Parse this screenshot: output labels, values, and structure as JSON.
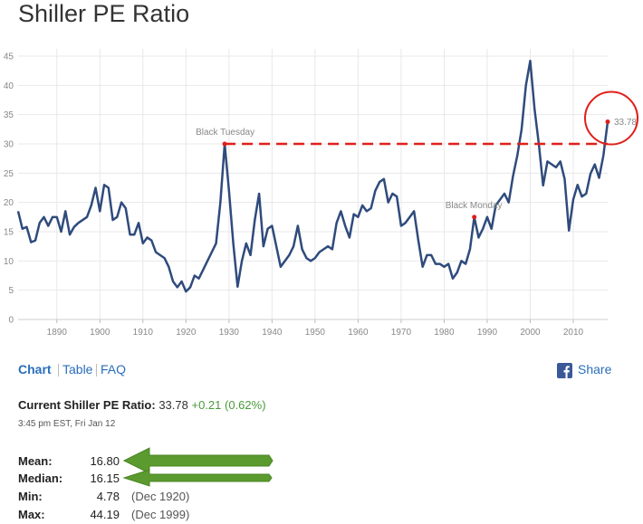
{
  "title": "Shiller PE Ratio",
  "chart_data": {
    "type": "line",
    "color": "#2f4b7c",
    "x": [
      1881,
      1882,
      1883,
      1884,
      1885,
      1886,
      1887,
      1888,
      1889,
      1890,
      1891,
      1892,
      1893,
      1894,
      1895,
      1896,
      1897,
      1898,
      1899,
      1900,
      1901,
      1902,
      1903,
      1904,
      1905,
      1906,
      1907,
      1908,
      1909,
      1910,
      1911,
      1912,
      1913,
      1914,
      1915,
      1916,
      1917,
      1918,
      1919,
      1920,
      1921,
      1922,
      1923,
      1924,
      1925,
      1926,
      1927,
      1928,
      1929,
      1930,
      1931,
      1932,
      1933,
      1934,
      1935,
      1936,
      1937,
      1938,
      1939,
      1940,
      1941,
      1942,
      1943,
      1944,
      1945,
      1946,
      1947,
      1948,
      1949,
      1950,
      1951,
      1952,
      1953,
      1954,
      1955,
      1956,
      1957,
      1958,
      1959,
      1960,
      1961,
      1962,
      1963,
      1964,
      1965,
      1966,
      1967,
      1968,
      1969,
      1970,
      1971,
      1972,
      1973,
      1974,
      1975,
      1976,
      1977,
      1978,
      1979,
      1980,
      1981,
      1982,
      1983,
      1984,
      1985,
      1986,
      1987,
      1988,
      1989,
      1990,
      1991,
      1992,
      1993,
      1994,
      1995,
      1996,
      1997,
      1998,
      1999,
      2000,
      2001,
      2002,
      2003,
      2004,
      2005,
      2006,
      2007,
      2008,
      2009,
      2010,
      2011,
      2012,
      2013,
      2014,
      2015,
      2016,
      2017,
      2018
    ],
    "values": [
      18.5,
      15.5,
      15.8,
      13.2,
      13.5,
      16.5,
      17.5,
      16,
      17.5,
      17.5,
      15,
      18.5,
      14.5,
      15.8,
      16.5,
      17,
      17.5,
      19.5,
      22.5,
      18.5,
      23,
      22.5,
      17,
      17.5,
      20,
      19,
      14.5,
      14.5,
      16.5,
      13,
      14,
      13.5,
      11.5,
      11,
      10.5,
      9,
      6.5,
      5.5,
      6.5,
      4.78,
      5.5,
      7.5,
      7,
      8.5,
      10,
      11.5,
      13,
      20,
      30,
      22,
      13,
      5.6,
      10,
      13,
      11,
      17,
      21.5,
      12.5,
      15.5,
      16,
      12.5,
      9,
      10,
      11,
      12.5,
      16,
      12,
      10.5,
      10,
      10.5,
      11.5,
      12,
      12.5,
      12,
      16.5,
      18.5,
      16,
      14,
      18,
      17.5,
      19.5,
      18.5,
      19,
      22,
      23.5,
      24,
      20,
      21.5,
      21,
      16,
      16.5,
      17.5,
      18.5,
      13.5,
      9,
      11,
      11,
      9.5,
      9.5,
      9,
      9.5,
      7,
      8,
      10,
      9.5,
      12,
      17.5,
      14,
      15.5,
      17.5,
      15.5,
      19.5,
      20.5,
      21.5,
      20,
      24.5,
      28,
      32.5,
      40,
      44.19,
      36,
      30,
      22.9,
      27,
      26.5,
      26,
      27,
      24,
      15.2,
      20.5,
      23,
      21,
      21.5,
      24.9,
      26.5,
      24.2,
      28,
      33.78
    ],
    "xlim": [
      1881,
      2018
    ],
    "ylim": [
      0,
      45
    ],
    "xticks": [
      1890,
      1900,
      1910,
      1920,
      1930,
      1940,
      1950,
      1960,
      1970,
      1980,
      1990,
      2000,
      2010
    ],
    "yticks": [
      0,
      5,
      10,
      15,
      20,
      25,
      30,
      35,
      40,
      45
    ],
    "grid": true,
    "annotations": [
      {
        "text": "Black Tuesday",
        "x": 1929,
        "y": 30
      },
      {
        "text": "Black Monday",
        "x": 1987,
        "y": 17.5
      }
    ]
  },
  "tabs": [
    "Chart",
    "Table",
    "FAQ"
  ],
  "share": "Share",
  "current": {
    "label": "Current Shiller PE Ratio:",
    "value": "33.78",
    "change": "+0.21 (0.62%)",
    "time": "3:45 pm EST, Fri Jan 12"
  },
  "stats": [
    [
      "Mean:",
      "16.80"
    ],
    [
      "Median:",
      "16.15"
    ],
    [
      "Min:",
      "4.78",
      "(Dec 1920)"
    ],
    [
      "Max:",
      "44.19",
      "(Dec 1999)"
    ]
  ]
}
